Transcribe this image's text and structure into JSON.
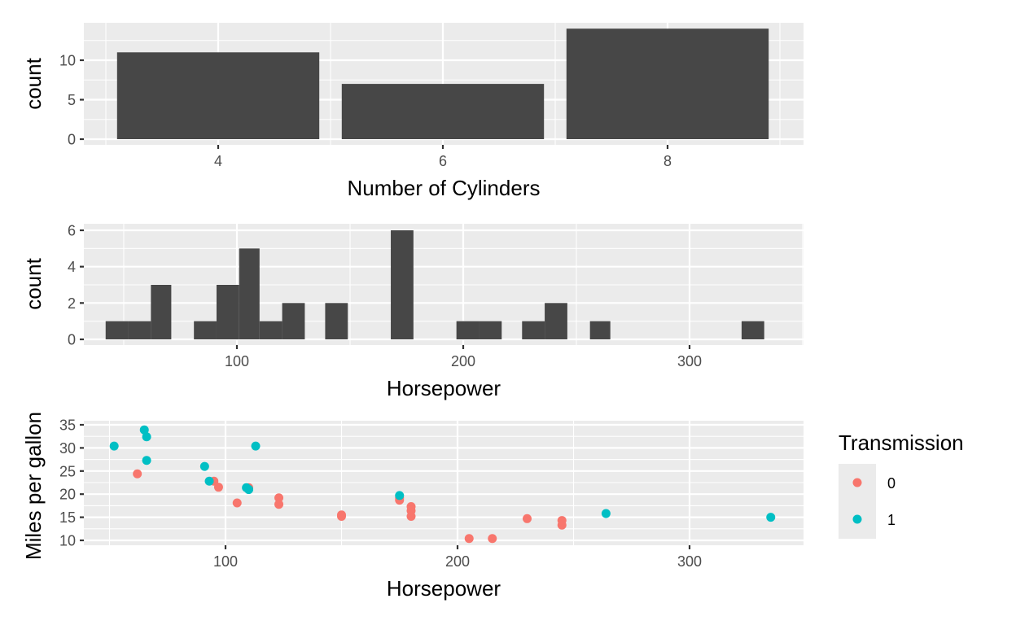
{
  "chart_data": [
    {
      "type": "bar",
      "xlabel": "Number of Cylinders",
      "ylabel": "count",
      "categories": [
        4,
        6,
        8
      ],
      "values": [
        11,
        7,
        14
      ],
      "bar_color": "#474747",
      "x_ticks": [
        4,
        6,
        8
      ],
      "y_ticks": [
        0,
        5,
        10
      ],
      "grid": true
    },
    {
      "type": "bar",
      "subtype": "histogram",
      "xlabel": "Horsepower",
      "ylabel": "count",
      "bins": [
        {
          "start": 42,
          "end": 52,
          "count": 1
        },
        {
          "start": 52,
          "end": 62,
          "count": 1
        },
        {
          "start": 62,
          "end": 71,
          "count": 3
        },
        {
          "start": 81,
          "end": 91,
          "count": 1
        },
        {
          "start": 91,
          "end": 101,
          "count": 3
        },
        {
          "start": 101,
          "end": 110,
          "count": 5
        },
        {
          "start": 110,
          "end": 120,
          "count": 1
        },
        {
          "start": 120,
          "end": 130,
          "count": 2
        },
        {
          "start": 139,
          "end": 149,
          "count": 2
        },
        {
          "start": 168,
          "end": 178,
          "count": 6
        },
        {
          "start": 197,
          "end": 207,
          "count": 1
        },
        {
          "start": 207,
          "end": 217,
          "count": 1
        },
        {
          "start": 226,
          "end": 236,
          "count": 1
        },
        {
          "start": 236,
          "end": 246,
          "count": 2
        },
        {
          "start": 256,
          "end": 265,
          "count": 1
        },
        {
          "start": 323,
          "end": 333,
          "count": 1
        }
      ],
      "bar_color": "#474747",
      "x_ticks": [
        100,
        200,
        300
      ],
      "y_ticks": [
        0,
        2,
        4,
        6
      ],
      "grid": true
    },
    {
      "type": "scatter",
      "xlabel": "Horsepower",
      "ylabel": "Miles per gallon",
      "x_ticks": [
        100,
        200,
        300
      ],
      "y_ticks": [
        10,
        15,
        20,
        25,
        30,
        35
      ],
      "grid": true,
      "legend": {
        "title": "Transmission",
        "placement": "right",
        "entries": [
          {
            "label": "0",
            "color": "#F8766D"
          },
          {
            "label": "1",
            "color": "#00BFC4"
          }
        ]
      },
      "series": [
        {
          "name": "0",
          "color": "#F8766D",
          "points": [
            [
              110,
              21.4
            ],
            [
              175,
              18.7
            ],
            [
              105,
              18.1
            ],
            [
              245,
              14.3
            ],
            [
              62,
              24.4
            ],
            [
              95,
              22.8
            ],
            [
              123,
              19.2
            ],
            [
              123,
              17.8
            ],
            [
              180,
              16.4
            ],
            [
              180,
              17.3
            ],
            [
              180,
              15.2
            ],
            [
              205,
              10.4
            ],
            [
              215,
              10.4
            ],
            [
              230,
              14.7
            ],
            [
              97,
              21.5
            ],
            [
              150,
              15.5
            ],
            [
              150,
              15.2
            ],
            [
              245,
              13.3
            ],
            [
              175,
              19.2
            ]
          ]
        },
        {
          "name": "1",
          "color": "#00BFC4",
          "points": [
            [
              110,
              21.0
            ],
            [
              110,
              21.0
            ],
            [
              93,
              22.8
            ],
            [
              66,
              32.4
            ],
            [
              52,
              30.4
            ],
            [
              65,
              33.9
            ],
            [
              66,
              27.3
            ],
            [
              91,
              26.0
            ],
            [
              113,
              30.4
            ],
            [
              264,
              15.8
            ],
            [
              175,
              19.7
            ],
            [
              335,
              15.0
            ],
            [
              109,
              21.4
            ]
          ]
        }
      ]
    }
  ]
}
